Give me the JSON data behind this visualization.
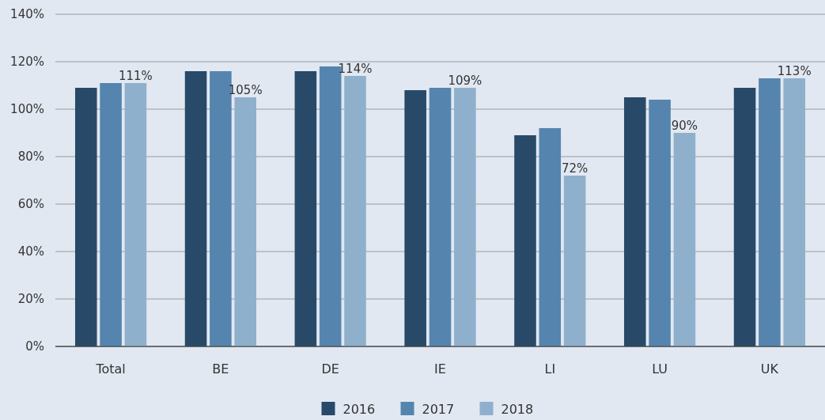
{
  "chart_data": {
    "type": "bar",
    "categories": [
      "Total",
      "BE",
      "DE",
      "IE",
      "LI",
      "LU",
      "UK"
    ],
    "series": [
      {
        "name": "2016",
        "color": "#284a68",
        "values": [
          109,
          116,
          116,
          108,
          89,
          105,
          109
        ]
      },
      {
        "name": "2017",
        "color": "#5585ae",
        "values": [
          111,
          116,
          118,
          109,
          92,
          104,
          113
        ]
      },
      {
        "name": "2018",
        "color": "#8fb0cc",
        "values": [
          111,
          105,
          114,
          109,
          72,
          90,
          113
        ],
        "value_labels": [
          "111%",
          "105%",
          "114%",
          "109%",
          "72%",
          "90%",
          "113%"
        ]
      }
    ],
    "ylim": [
      0,
      140
    ],
    "yticks": [
      {
        "value": 0,
        "label": "0%"
      },
      {
        "value": 20,
        "label": "20%"
      },
      {
        "value": 40,
        "label": "40%"
      },
      {
        "value": 60,
        "label": "60%"
      },
      {
        "value": 80,
        "label": "80%"
      },
      {
        "value": 100,
        "label": "100%"
      },
      {
        "value": 120,
        "label": "120%"
      },
      {
        "value": 140,
        "label": "140%"
      }
    ],
    "grid": "y",
    "legend": "bottom"
  }
}
